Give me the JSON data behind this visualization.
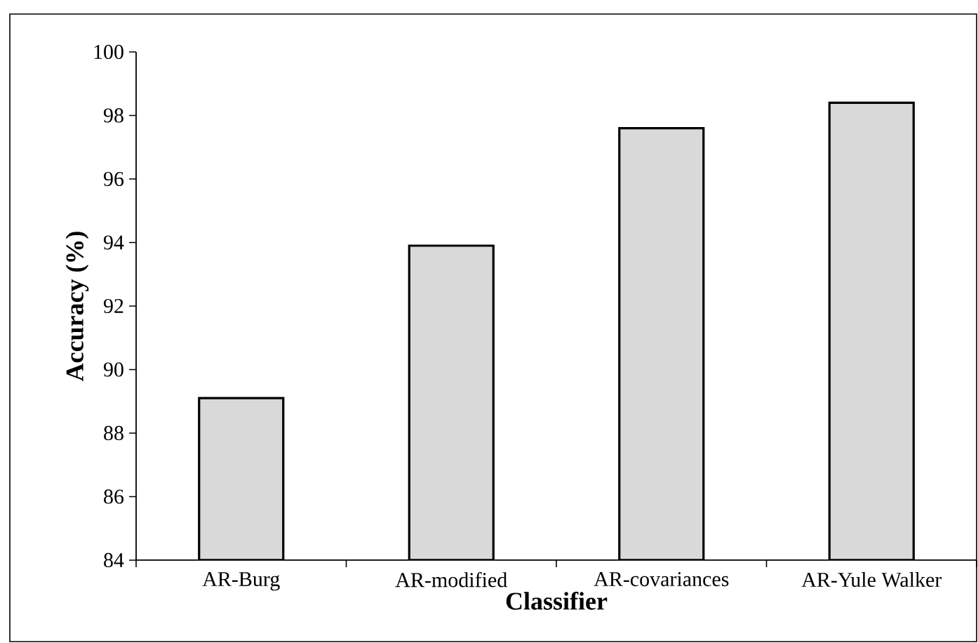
{
  "chart_data": {
    "type": "bar",
    "xlabel": "Classifier",
    "ylabel": "Accuracy (%)",
    "categories": [
      "AR-Burg",
      "AR-modified",
      "AR-covariances",
      "AR-Yule Walker"
    ],
    "values": [
      89.1,
      93.9,
      97.6,
      98.4
    ],
    "color": "#d9d9d9",
    "ylim": [
      84,
      100
    ],
    "yticks": [
      84,
      86,
      88,
      90,
      92,
      94,
      96,
      98,
      100
    ],
    "grid": false
  }
}
